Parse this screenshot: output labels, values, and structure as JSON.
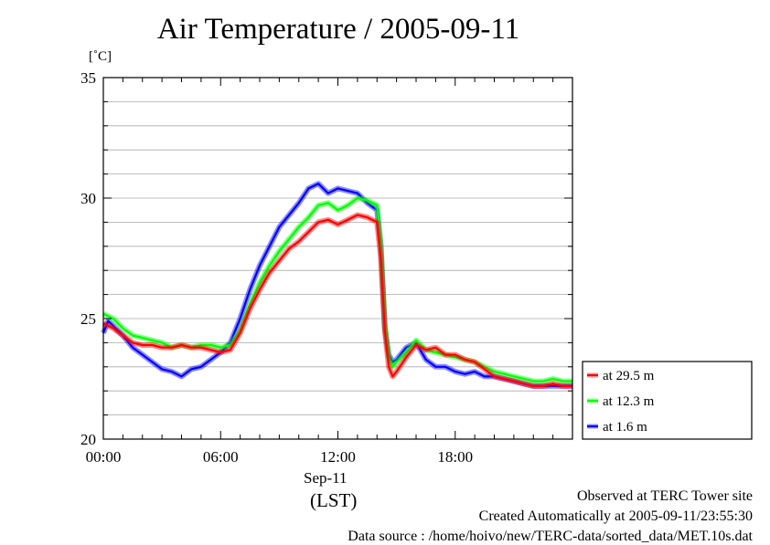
{
  "chart_data": {
    "type": "line",
    "title": "Air Temperature / 2005-09-11",
    "ylabel": "[˚C]",
    "date_label": "Sep-11",
    "tz_label": "(LST)",
    "xlim": [
      0,
      24
    ],
    "ylim": [
      20,
      35
    ],
    "grid": true,
    "legend_position": "right",
    "x_ticks": [
      {
        "value": 0,
        "label": "00:00"
      },
      {
        "value": 6,
        "label": "06:00"
      },
      {
        "value": 12,
        "label": "12:00"
      },
      {
        "value": 18,
        "label": "18:00"
      }
    ],
    "y_ticks": [
      {
        "value": 20,
        "label": "20"
      },
      {
        "value": 25,
        "label": "25"
      },
      {
        "value": 30,
        "label": "30"
      },
      {
        "value": 35,
        "label": "35"
      }
    ],
    "series": [
      {
        "name": "at 29.5 m",
        "color": "#ff0000",
        "x": [
          0,
          0.5,
          1,
          1.5,
          2,
          2.5,
          3,
          3.5,
          4,
          4.5,
          5,
          5.5,
          6,
          6.5,
          7,
          7.5,
          8,
          8.5,
          9,
          9.5,
          10,
          10.5,
          11,
          11.5,
          12,
          12.5,
          13,
          13.5,
          14,
          14.2,
          14.4,
          14.6,
          14.8,
          15,
          15.5,
          16,
          16.5,
          17,
          17.5,
          18,
          18.5,
          19,
          19.5,
          20,
          20.5,
          21,
          21.5,
          22,
          22.5,
          23,
          23.5,
          24
        ],
        "y": [
          24.8,
          24.6,
          24.3,
          24.0,
          23.9,
          23.9,
          23.8,
          23.8,
          23.9,
          23.8,
          23.8,
          23.7,
          23.6,
          23.7,
          24.4,
          25.4,
          26.2,
          26.9,
          27.4,
          27.9,
          28.2,
          28.6,
          29.0,
          29.1,
          28.9,
          29.1,
          29.3,
          29.2,
          29.0,
          27.5,
          24.5,
          23.0,
          22.6,
          22.8,
          23.4,
          23.9,
          23.7,
          23.8,
          23.5,
          23.5,
          23.3,
          23.2,
          22.9,
          22.6,
          22.5,
          22.4,
          22.3,
          22.2,
          22.2,
          22.3,
          22.2,
          22.2
        ]
      },
      {
        "name": "at 12.3 m",
        "color": "#00ff00",
        "x": [
          0,
          0.5,
          1,
          1.5,
          2,
          2.5,
          3,
          3.5,
          4,
          4.5,
          5,
          5.5,
          6,
          6.5,
          7,
          7.5,
          8,
          8.5,
          9,
          9.5,
          10,
          10.5,
          11,
          11.5,
          12,
          12.5,
          13,
          13.5,
          14,
          14.2,
          14.4,
          14.6,
          14.8,
          15,
          15.5,
          16,
          16.5,
          17,
          17.5,
          18,
          18.5,
          19,
          19.5,
          20,
          20.5,
          21,
          21.5,
          22,
          22.5,
          23,
          23.5,
          24
        ],
        "y": [
          25.2,
          25.0,
          24.6,
          24.3,
          24.2,
          24.1,
          24.0,
          23.8,
          23.9,
          23.8,
          23.9,
          23.9,
          23.8,
          23.9,
          24.5,
          25.6,
          26.5,
          27.2,
          27.8,
          28.3,
          28.8,
          29.2,
          29.7,
          29.8,
          29.5,
          29.7,
          30.0,
          29.9,
          29.7,
          28.0,
          24.8,
          23.4,
          23.0,
          23.2,
          23.6,
          24.1,
          23.7,
          23.6,
          23.5,
          23.4,
          23.3,
          23.2,
          23.0,
          22.8,
          22.7,
          22.6,
          22.5,
          22.4,
          22.4,
          22.5,
          22.4,
          22.4
        ]
      },
      {
        "name": "at 1.6 m",
        "color": "#0000ff",
        "x": [
          0,
          0.25,
          0.5,
          1,
          1.5,
          2,
          2.5,
          3,
          3.5,
          4,
          4.5,
          5,
          5.5,
          6,
          6.5,
          7,
          7.5,
          8,
          8.5,
          9,
          9.5,
          10,
          10.5,
          11,
          11.5,
          12,
          12.5,
          13,
          13.5,
          14,
          14.2,
          14.4,
          14.6,
          14.8,
          15,
          15.5,
          16,
          16.5,
          17,
          17.5,
          18,
          18.5,
          19,
          19.5,
          20,
          20.5,
          21,
          21.5,
          22,
          22.5,
          23,
          23.5,
          24
        ],
        "y": [
          24.4,
          24.9,
          24.7,
          24.3,
          23.8,
          23.5,
          23.2,
          22.9,
          22.8,
          22.6,
          22.9,
          23.0,
          23.3,
          23.6,
          24.0,
          25.0,
          26.2,
          27.2,
          28.0,
          28.8,
          29.3,
          29.8,
          30.4,
          30.6,
          30.2,
          30.4,
          30.3,
          30.2,
          29.8,
          29.5,
          28.0,
          24.6,
          23.5,
          23.2,
          23.3,
          23.8,
          24.0,
          23.3,
          23.0,
          23.0,
          22.8,
          22.7,
          22.8,
          22.6,
          22.6,
          22.5,
          22.4,
          22.3,
          22.2,
          22.2,
          22.2,
          22.2,
          22.2
        ]
      }
    ]
  },
  "notes": {
    "line1": "Observed at TERC Tower site",
    "line2": "Created Automatically at 2005-09-11/23:55:30",
    "line3": "Data source : /home/hoivo/new/TERC-data/sorted_data/MET.10s.dat"
  }
}
